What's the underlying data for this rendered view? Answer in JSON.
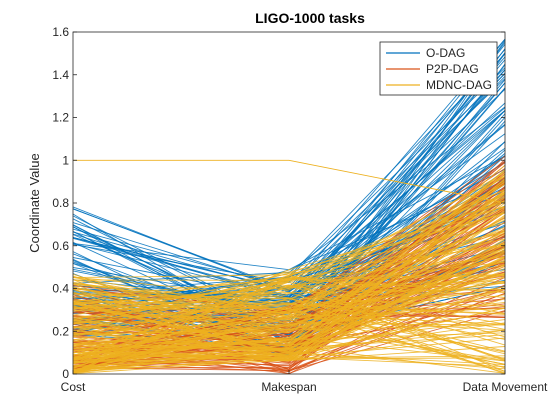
{
  "chart_data": {
    "type": "parallel-coordinates",
    "title": "LIGO-1000 tasks",
    "xlabel": "",
    "ylabel": "Coordinate Value",
    "categories": [
      "Cost",
      "Makespan",
      "Data Movement"
    ],
    "ylim": [
      0,
      1.6
    ],
    "yticks": [
      0,
      0.2,
      0.4,
      0.6,
      0.8,
      1,
      1.2,
      1.4,
      1.6
    ],
    "grid": false,
    "legend_position": "top-right",
    "series": [
      {
        "name": "O-DAG",
        "color": "#0072BD",
        "ranges": {
          "Cost": [
            0.18,
            0.79
          ],
          "Makespan": [
            0.08,
            0.49
          ],
          "Data Movement": [
            0.4,
            1.57
          ]
        },
        "count": 90
      },
      {
        "name": "P2P-DAG",
        "color": "#D95319",
        "ranges": {
          "Cost": [
            0.02,
            0.42
          ],
          "Makespan": [
            0.0,
            0.33
          ],
          "Data Movement": [
            0.25,
            1.02
          ]
        },
        "count": 90
      },
      {
        "name": "MDNC-DAG",
        "color": "#EDB120",
        "ranges": {
          "Cost": [
            0.0,
            0.48
          ],
          "Makespan": [
            0.06,
            0.49
          ],
          "Data Movement": [
            0.0,
            0.98
          ]
        },
        "count": 150,
        "outlier": {
          "Cost": 1.0,
          "Makespan": 1.0,
          "Data Movement": 0.8
        }
      }
    ]
  }
}
